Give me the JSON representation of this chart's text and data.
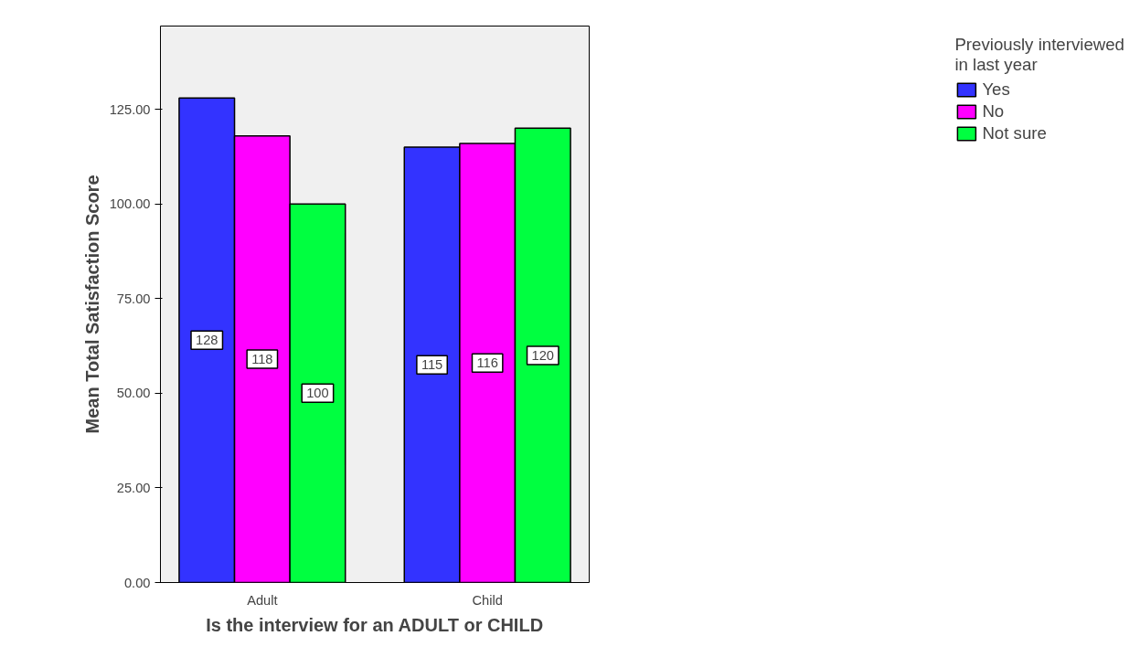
{
  "chart_data": {
    "type": "bar",
    "xlabel": "Is the interview for an ADULT or CHILD",
    "ylabel": "Mean Total Satisfaction Score",
    "legend_title": "Previously interviewed\nin last year",
    "categories": [
      "Adult",
      "Child"
    ],
    "series": [
      {
        "name": "Yes",
        "color": "#3333ff",
        "values": [
          128,
          115
        ]
      },
      {
        "name": "No",
        "color": "#ff00ff",
        "values": [
          118,
          116
        ]
      },
      {
        "name": "Not sure",
        "color": "#00ff40",
        "values": [
          100,
          120
        ]
      }
    ],
    "ylim": [
      0,
      147
    ],
    "yticks": [
      {
        "value": 0,
        "label": "0.00"
      },
      {
        "value": 25,
        "label": "25.00"
      },
      {
        "value": 50,
        "label": "50.00"
      },
      {
        "value": 75,
        "label": "75.00"
      },
      {
        "value": 100,
        "label": "100.00"
      },
      {
        "value": 125,
        "label": "125.00"
      }
    ],
    "data_labels": true,
    "legend": "top right",
    "grid": false
  }
}
